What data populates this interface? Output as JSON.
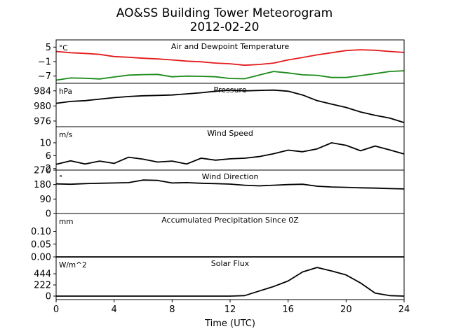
{
  "chart_data": {
    "type": "line",
    "title": "AO&SS Building Tower Meteorogram",
    "subtitle": "2012-02-20",
    "xlabel": "Time (UTC)",
    "xlim": [
      0,
      24
    ],
    "xticks": [
      "0",
      "4",
      "8",
      "12",
      "16",
      "20",
      "24"
    ],
    "x": [
      0,
      1,
      2,
      3,
      4,
      5,
      6,
      7,
      8,
      9,
      10,
      11,
      12,
      13,
      14,
      15,
      16,
      17,
      18,
      19,
      20,
      21,
      22,
      23,
      24
    ],
    "panels": [
      {
        "title": "Air and Dewpoint Temperature",
        "unit": "°C",
        "ylim": [
          -10,
          8
        ],
        "yticks": [
          "5",
          "−1",
          "−7"
        ],
        "series": [
          {
            "color": "#e41a1c",
            "values": [
              3.2,
              2.7,
              2.4,
              2.0,
              1.1,
              0.8,
              0.4,
              0.1,
              -0.3,
              -0.8,
              -1.1,
              -1.6,
              -1.9,
              -2.5,
              -2.2,
              -1.6,
              -0.3,
              0.7,
              1.8,
              2.7,
              3.6,
              3.9,
              3.7,
              3.2,
              2.8
            ]
          },
          {
            "color": "#1a8a1a",
            "values": [
              -8.7,
              -7.8,
              -7.9,
              -8.2,
              -7.4,
              -6.6,
              -6.4,
              -6.3,
              -7.3,
              -7.0,
              -7.1,
              -7.3,
              -8.0,
              -8.1,
              -6.6,
              -5.1,
              -5.7,
              -6.5,
              -6.7,
              -7.6,
              -7.6,
              -6.8,
              -6.0,
              -5.1,
              -4.8
            ]
          }
        ]
      },
      {
        "title": "Pressure",
        "unit": "hPa",
        "ylim": [
          974.5,
          986
        ],
        "yticks": [
          "984",
          "980",
          "976"
        ],
        "series": [
          {
            "color": "#000000",
            "values": [
              980.7,
              981.2,
              981.4,
              981.8,
              982.2,
              982.5,
              982.7,
              982.8,
              982.9,
              983.2,
              983.5,
              983.9,
              984.2,
              984.0,
              984.1,
              984.2,
              983.9,
              982.9,
              981.4,
              980.5,
              979.6,
              978.4,
              977.5,
              976.8,
              975.6
            ]
          }
        ]
      },
      {
        "title": "Wind Speed",
        "unit": "m/s",
        "ylim": [
          1.5,
          15
        ],
        "yticks": [
          "10",
          "6",
          "2"
        ],
        "series": [
          {
            "color": "#000000",
            "values": [
              3.3,
              4.4,
              3.4,
              4.3,
              3.6,
              5.5,
              4.9,
              4.0,
              4.3,
              3.4,
              5.2,
              4.6,
              5.0,
              5.2,
              5.7,
              6.6,
              7.7,
              7.2,
              8.1,
              10.0,
              9.2,
              7.5,
              9.0,
              7.8,
              6.5
            ]
          }
        ]
      },
      {
        "title": "Wind Direction",
        "unit": "°",
        "ylim": [
          0,
          270
        ],
        "yticks": [
          "270",
          "180",
          "90",
          "0"
        ],
        "series": [
          {
            "color": "#000000",
            "values": [
              184,
              182,
              186,
              188,
              190,
              192,
              208,
              206,
              190,
              192,
              188,
              186,
              183,
              176,
              172,
              176,
              180,
              182,
              170,
              165,
              163,
              160,
              158,
              155,
              153
            ]
          }
        ]
      },
      {
        "title": "Accumulated Precipitation Since 0Z",
        "unit": "mm",
        "ylim": [
          0,
          0.17
        ],
        "yticks": [
          "0.10",
          "0.05",
          "0.00"
        ],
        "series": [
          {
            "color": "#000000",
            "values": [
              0,
              0,
              0,
              0,
              0,
              0,
              0,
              0,
              0,
              0,
              0,
              0,
              0,
              0,
              0,
              0,
              0,
              0,
              0,
              0,
              0,
              0,
              0,
              0,
              0
            ]
          }
        ]
      },
      {
        "title": "Solar Flux",
        "unit": "W/m^2",
        "ylim": [
          -70,
          780
        ],
        "yticks": [
          "444",
          "222",
          "0"
        ],
        "series": [
          {
            "color": "#000000",
            "values": [
              0,
              0,
              0,
              0,
              0,
              0,
              0,
              0,
              0,
              0,
              0,
              0,
              0,
              10,
              100,
              190,
              300,
              480,
              570,
              500,
              420,
              260,
              60,
              10,
              0
            ]
          }
        ]
      }
    ]
  }
}
